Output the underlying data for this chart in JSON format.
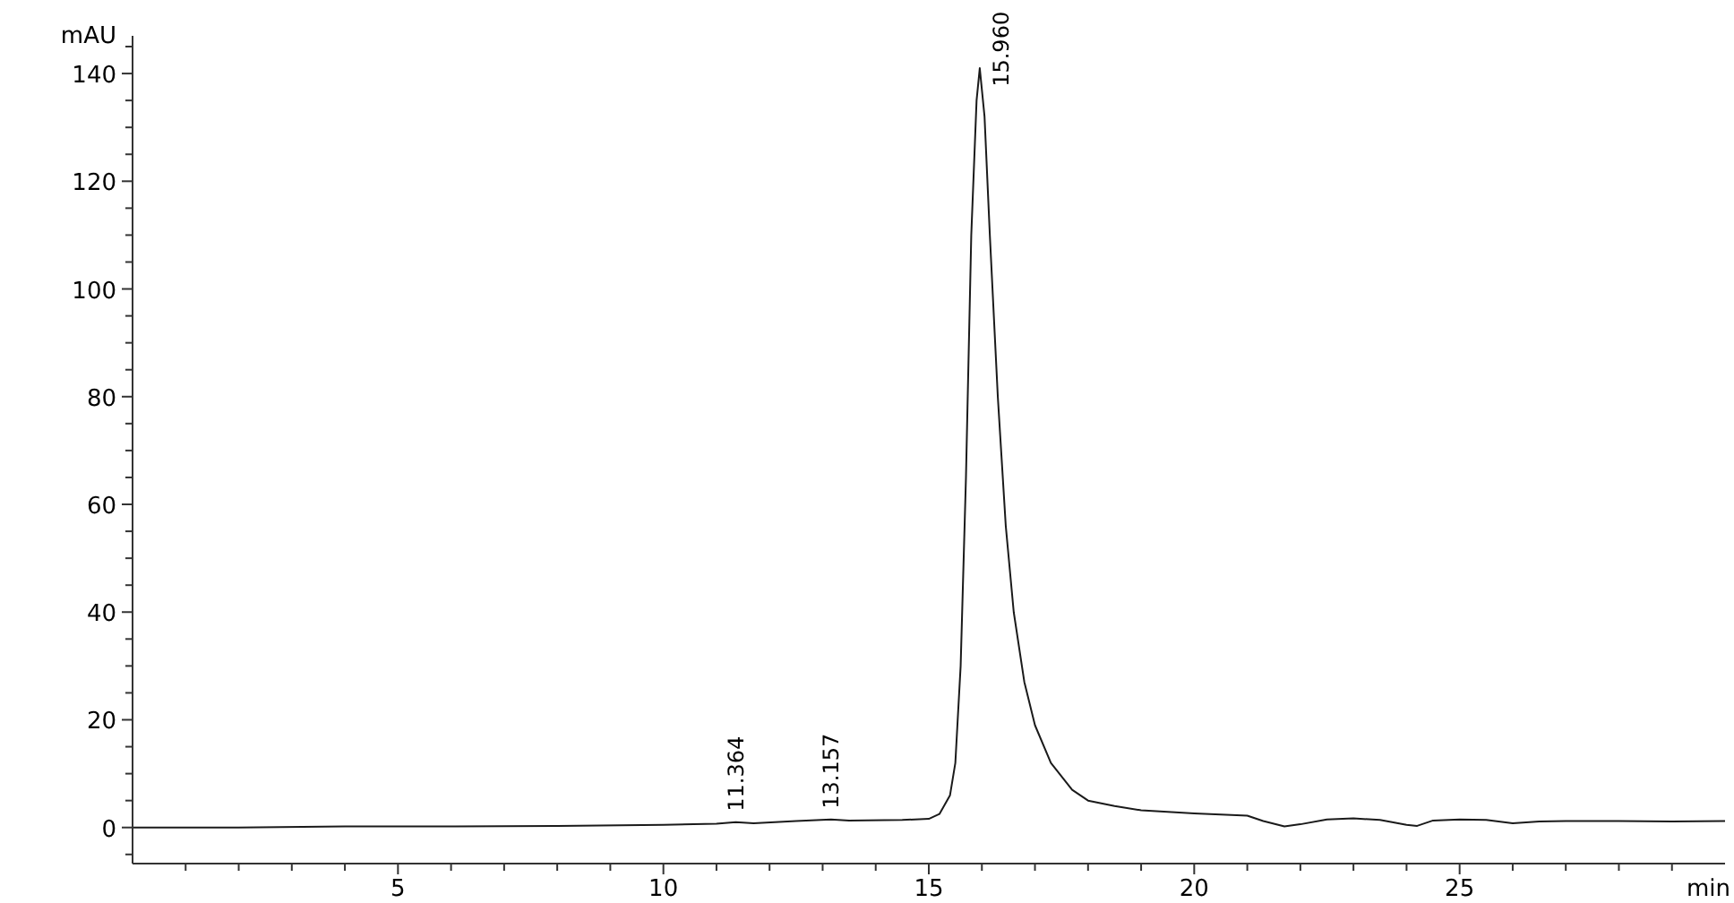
{
  "chart_data": {
    "type": "line",
    "xlabel": "min",
    "ylabel": "mAU",
    "series": [
      {
        "color": "#1a1a1a",
        "x": [
          0,
          2,
          4,
          6,
          8,
          10,
          11,
          11.364,
          11.7,
          12.5,
          13.157,
          13.5,
          14.5,
          15,
          15.2,
          15.4,
          15.5,
          15.6,
          15.7,
          15.8,
          15.9,
          15.96,
          16.05,
          16.15,
          16.3,
          16.45,
          16.6,
          16.8,
          17,
          17.3,
          17.7,
          18,
          18.5,
          19,
          20,
          21,
          21.3,
          21.7,
          22,
          22.5,
          23,
          23.5,
          24,
          24.2,
          24.5,
          25,
          25.5,
          26,
          26.5,
          27,
          28,
          29,
          30
        ],
        "values": [
          0,
          0,
          0.2,
          0.2,
          0.3,
          0.5,
          0.7,
          1,
          0.8,
          1.2,
          1.5,
          1.3,
          1.4,
          1.6,
          2.5,
          6,
          12,
          30,
          65,
          110,
          135,
          141,
          132,
          110,
          80,
          56,
          40,
          27,
          19,
          12,
          7,
          5,
          4,
          3.2,
          2.6,
          2.2,
          1.2,
          0.2,
          0.6,
          1.5,
          1.7,
          1.4,
          0.5,
          0.3,
          1.3,
          1.5,
          1.4,
          0.8,
          1.1,
          1.2,
          1.2,
          1.1,
          1.2
        ]
      }
    ],
    "xlim": [
      0,
      30
    ],
    "xticks": [
      {
        "value": 1,
        "label": null
      },
      {
        "value": 2,
        "label": null
      },
      {
        "value": 3,
        "label": null
      },
      {
        "value": 4,
        "label": null
      },
      5,
      {
        "value": 6,
        "label": null
      },
      {
        "value": 7,
        "label": null
      },
      {
        "value": 8,
        "label": null
      },
      {
        "value": 9,
        "label": null
      },
      10,
      {
        "value": 11,
        "label": null
      },
      {
        "value": 12,
        "label": null
      },
      {
        "value": 13,
        "label": null
      },
      {
        "value": 14,
        "label": null
      },
      15,
      {
        "value": 16,
        "label": null
      },
      {
        "value": 17,
        "label": null
      },
      {
        "value": 18,
        "label": null
      },
      {
        "value": 19,
        "label": null
      },
      20,
      {
        "value": 21,
        "label": null
      },
      {
        "value": 22,
        "label": null
      },
      {
        "value": 23,
        "label": null
      },
      {
        "value": 24,
        "label": null
      },
      25,
      {
        "value": 26,
        "label": null
      },
      {
        "value": 27,
        "label": null
      },
      {
        "value": 28,
        "label": null
      },
      {
        "value": 29,
        "label": null
      }
    ],
    "ylim": [
      -6.7,
      147
    ],
    "yticks": [
      {
        "value": -5,
        "label": null
      },
      0,
      {
        "value": 5,
        "label": null
      },
      {
        "value": 10,
        "label": null
      },
      {
        "value": 15,
        "label": null
      },
      20,
      {
        "value": 25,
        "label": null
      },
      {
        "value": 30,
        "label": null
      },
      {
        "value": 35,
        "label": null
      },
      40,
      {
        "value": 45,
        "label": null
      },
      {
        "value": 50,
        "label": null
      },
      {
        "value": 55,
        "label": null
      },
      60,
      {
        "value": 65,
        "label": null
      },
      {
        "value": 70,
        "label": null
      },
      {
        "value": 75,
        "label": null
      },
      80,
      {
        "value": 85,
        "label": null
      },
      {
        "value": 90,
        "label": null
      },
      {
        "value": 95,
        "label": null
      },
      100,
      {
        "value": 105,
        "label": null
      },
      {
        "value": 110,
        "label": null
      },
      {
        "value": 115,
        "label": null
      },
      120,
      {
        "value": 125,
        "label": null
      },
      {
        "value": 130,
        "label": null
      },
      {
        "value": 135,
        "label": null
      },
      140,
      {
        "value": 145,
        "label": null
      }
    ],
    "annotations": [
      {
        "text": "11.364",
        "x": 11.364,
        "y": 1
      },
      {
        "text": "13.157",
        "x": 13.157,
        "y": 1.5
      },
      {
        "text": "15.960",
        "x": 15.96,
        "y": 141
      }
    ],
    "grid": false,
    "marker": "none",
    "line_style": "solid"
  }
}
